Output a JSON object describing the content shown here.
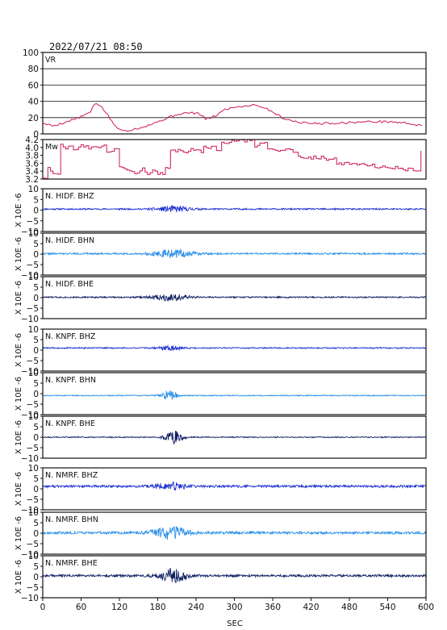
{
  "header": {
    "timestamp": "2022/07/21  08:50"
  },
  "chart_data": {
    "type": "line",
    "xlabel": "SEC",
    "xlim": [
      0,
      600
    ],
    "xticks": [
      "0",
      "60",
      "120",
      "180",
      "240",
      "300",
      "360",
      "420",
      "480",
      "540",
      "600"
    ],
    "grid": true,
    "ylabel_trace": "X 10E -6",
    "panels": [
      {
        "label": "VR",
        "color": "#cc1b4f",
        "ylim": [
          0,
          100
        ],
        "yticks": [
          "100",
          "80",
          "60",
          "40",
          "20",
          "0"
        ],
        "series": {
          "x": [
            0,
            15,
            30,
            45,
            60,
            75,
            82,
            90,
            100,
            110,
            120,
            130,
            150,
            170,
            190,
            210,
            230,
            245,
            255,
            270,
            285,
            300,
            315,
            330,
            345,
            360,
            375,
            390,
            405,
            420,
            450,
            480,
            510,
            540,
            560,
            580,
            595
          ],
          "y": [
            13,
            10,
            13,
            17,
            21,
            27,
            38,
            35,
            25,
            13,
            5,
            4,
            7,
            12,
            18,
            24,
            26,
            25,
            18,
            22,
            30,
            33,
            34,
            36,
            33,
            27,
            20,
            16,
            14,
            13,
            13,
            14,
            15,
            15,
            14,
            12,
            9
          ]
        }
      },
      {
        "label": "Mw",
        "color": "#cc1b4f",
        "ylim": [
          3.2,
          4.2
        ],
        "yticks": [
          "4.2",
          "4.0",
          "3.8",
          "3.6",
          "3.4",
          "3.2"
        ],
        "series": {
          "x": [
            0,
            8,
            15,
            25,
            35,
            45,
            55,
            70,
            85,
            95,
            100,
            110,
            120,
            130,
            140,
            150,
            160,
            170,
            180,
            190,
            200,
            210,
            220,
            230,
            240,
            250,
            260,
            270,
            280,
            290,
            300,
            310,
            320,
            330,
            340,
            350,
            360,
            370,
            380,
            390,
            400,
            420,
            440,
            460,
            480,
            500,
            520,
            540,
            560,
            580,
            590,
            595
          ],
          "y": [
            3.25,
            3.45,
            3.35,
            4.05,
            4.0,
            3.95,
            4.05,
            4.0,
            4.0,
            4.1,
            3.9,
            3.95,
            3.5,
            3.4,
            3.35,
            3.45,
            3.35,
            3.4,
            3.35,
            3.45,
            3.9,
            3.95,
            3.9,
            3.95,
            3.9,
            4.0,
            4.0,
            3.95,
            4.1,
            4.15,
            4.2,
            4.15,
            4.2,
            4.05,
            4.15,
            3.95,
            3.95,
            3.9,
            3.95,
            3.9,
            3.75,
            3.75,
            3.7,
            3.6,
            3.6,
            3.55,
            3.5,
            3.5,
            3.45,
            3.45,
            3.95,
            3.95
          ]
        }
      },
      {
        "label": "N. HIDF. BHZ",
        "color": "#1a2fcf",
        "ylim": [
          -10,
          10
        ],
        "yticks": [
          "10",
          "5",
          "0",
          "−5",
          "−10"
        ],
        "baseline": 0.5,
        "noise": 0.35,
        "event_center": 205,
        "event_amp": 1.3,
        "event_width": 26,
        "seed": 11
      },
      {
        "label": "N. HIDF. BHN",
        "color": "#2a8fe8",
        "ylim": [
          -10,
          10
        ],
        "yticks": [
          "10",
          "5",
          "0",
          "−5",
          "−10"
        ],
        "baseline": 0.2,
        "noise": 0.4,
        "event_center": 205,
        "event_amp": 1.8,
        "event_width": 30,
        "seed": 22
      },
      {
        "label": "N. HIDF. BHE",
        "color": "#0f1f63",
        "ylim": [
          -10,
          10
        ],
        "yticks": [
          "10",
          "5",
          "0",
          "−5",
          "−10"
        ],
        "baseline": 0.2,
        "noise": 0.35,
        "event_center": 200,
        "event_amp": 1.5,
        "event_width": 28,
        "seed": 33
      },
      {
        "label": "N. KNPF. BHZ",
        "color": "#1a2fcf",
        "ylim": [
          -10,
          10
        ],
        "yticks": [
          "10",
          "5",
          "0",
          "−5",
          "−10"
        ],
        "baseline": 1.0,
        "noise": 0.3,
        "event_center": 200,
        "event_amp": 0.9,
        "event_width": 22,
        "seed": 44
      },
      {
        "label": "N. KNPF. BHN",
        "color": "#2a8fe8",
        "ylim": [
          -10,
          10
        ],
        "yticks": [
          "10",
          "5",
          "0",
          "−5",
          "−10"
        ],
        "baseline": -0.9,
        "noise": 0.25,
        "event_center": 198,
        "event_amp": 2.2,
        "event_width": 12,
        "seed": 55
      },
      {
        "label": "N. KNPF. BHE",
        "color": "#0f1f63",
        "ylim": [
          -10,
          10
        ],
        "yticks": [
          "10",
          "5",
          "0",
          "−5",
          "−10"
        ],
        "baseline": 0.0,
        "noise": 0.25,
        "event_center": 205,
        "event_amp": 3.0,
        "event_width": 14,
        "seed": 66
      },
      {
        "label": "N. NMRF. BHZ",
        "color": "#1a2fcf",
        "ylim": [
          -10,
          10
        ],
        "yticks": [
          "10",
          "5",
          "0",
          "−5",
          "−10"
        ],
        "baseline": 1.2,
        "noise": 0.55,
        "event_center": 200,
        "event_amp": 1.6,
        "event_width": 24,
        "seed": 77
      },
      {
        "label": "N. NMRF. BHN",
        "color": "#2a8fe8",
        "ylim": [
          -10,
          10
        ],
        "yticks": [
          "10",
          "5",
          "0",
          "−5",
          "−10"
        ],
        "baseline": 0.2,
        "noise": 0.6,
        "event_center": 200,
        "event_amp": 2.8,
        "event_width": 26,
        "seed": 88
      },
      {
        "label": "N. NMRF. BHE",
        "color": "#0f1f63",
        "ylim": [
          -10,
          10
        ],
        "yticks": [
          "10",
          "5",
          "0",
          "−5",
          "−10"
        ],
        "baseline": 0.5,
        "noise": 0.55,
        "event_center": 203,
        "event_amp": 3.2,
        "event_width": 22,
        "seed": 99
      }
    ]
  }
}
